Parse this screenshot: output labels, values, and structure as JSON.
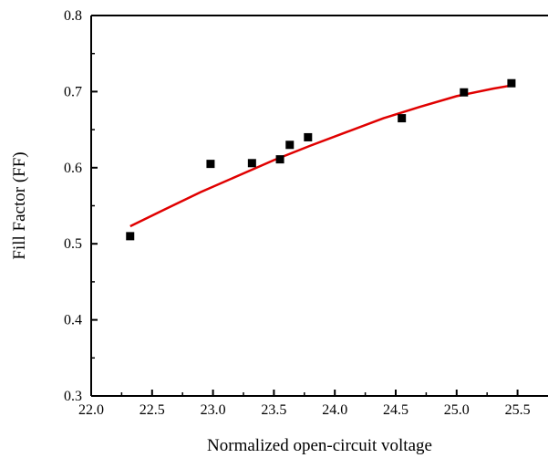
{
  "chart_data": {
    "type": "scatter",
    "title": "",
    "xlabel": "Normalized open-circuit voltage",
    "ylabel": "Fill Factor (FF)",
    "xlim": [
      22.0,
      25.75
    ],
    "ylim": [
      0.3,
      0.8
    ],
    "x_ticks": [
      22.0,
      22.5,
      23.0,
      23.5,
      24.0,
      24.5,
      25.0,
      25.5
    ],
    "x_tick_labels": [
      "22.0",
      "22.5",
      "23.0",
      "23.5",
      "24.0",
      "24.5",
      "25.0",
      "25.5"
    ],
    "y_ticks": [
      0.3,
      0.4,
      0.5,
      0.6,
      0.7,
      0.8
    ],
    "y_tick_labels": [
      "0.3",
      "0.4",
      "0.5",
      "0.6",
      "0.7",
      "0.8"
    ],
    "grid": false,
    "legend": "none",
    "series": [
      {
        "kind": "points",
        "marker": "square",
        "color": "#000000",
        "x": [
          22.32,
          22.98,
          23.32,
          23.55,
          23.63,
          23.78,
          24.55,
          25.06,
          25.45
        ],
        "y": [
          0.51,
          0.605,
          0.606,
          0.611,
          0.63,
          0.64,
          0.665,
          0.699,
          0.711
        ]
      },
      {
        "kind": "fit-line",
        "color": "#e00000",
        "x": [
          22.32,
          22.6,
          22.9,
          23.2,
          23.5,
          23.8,
          24.1,
          24.4,
          24.7,
          25.0,
          25.3,
          25.45
        ],
        "y": [
          0.523,
          0.545,
          0.568,
          0.589,
          0.61,
          0.629,
          0.647,
          0.665,
          0.68,
          0.694,
          0.704,
          0.708
        ]
      }
    ]
  }
}
